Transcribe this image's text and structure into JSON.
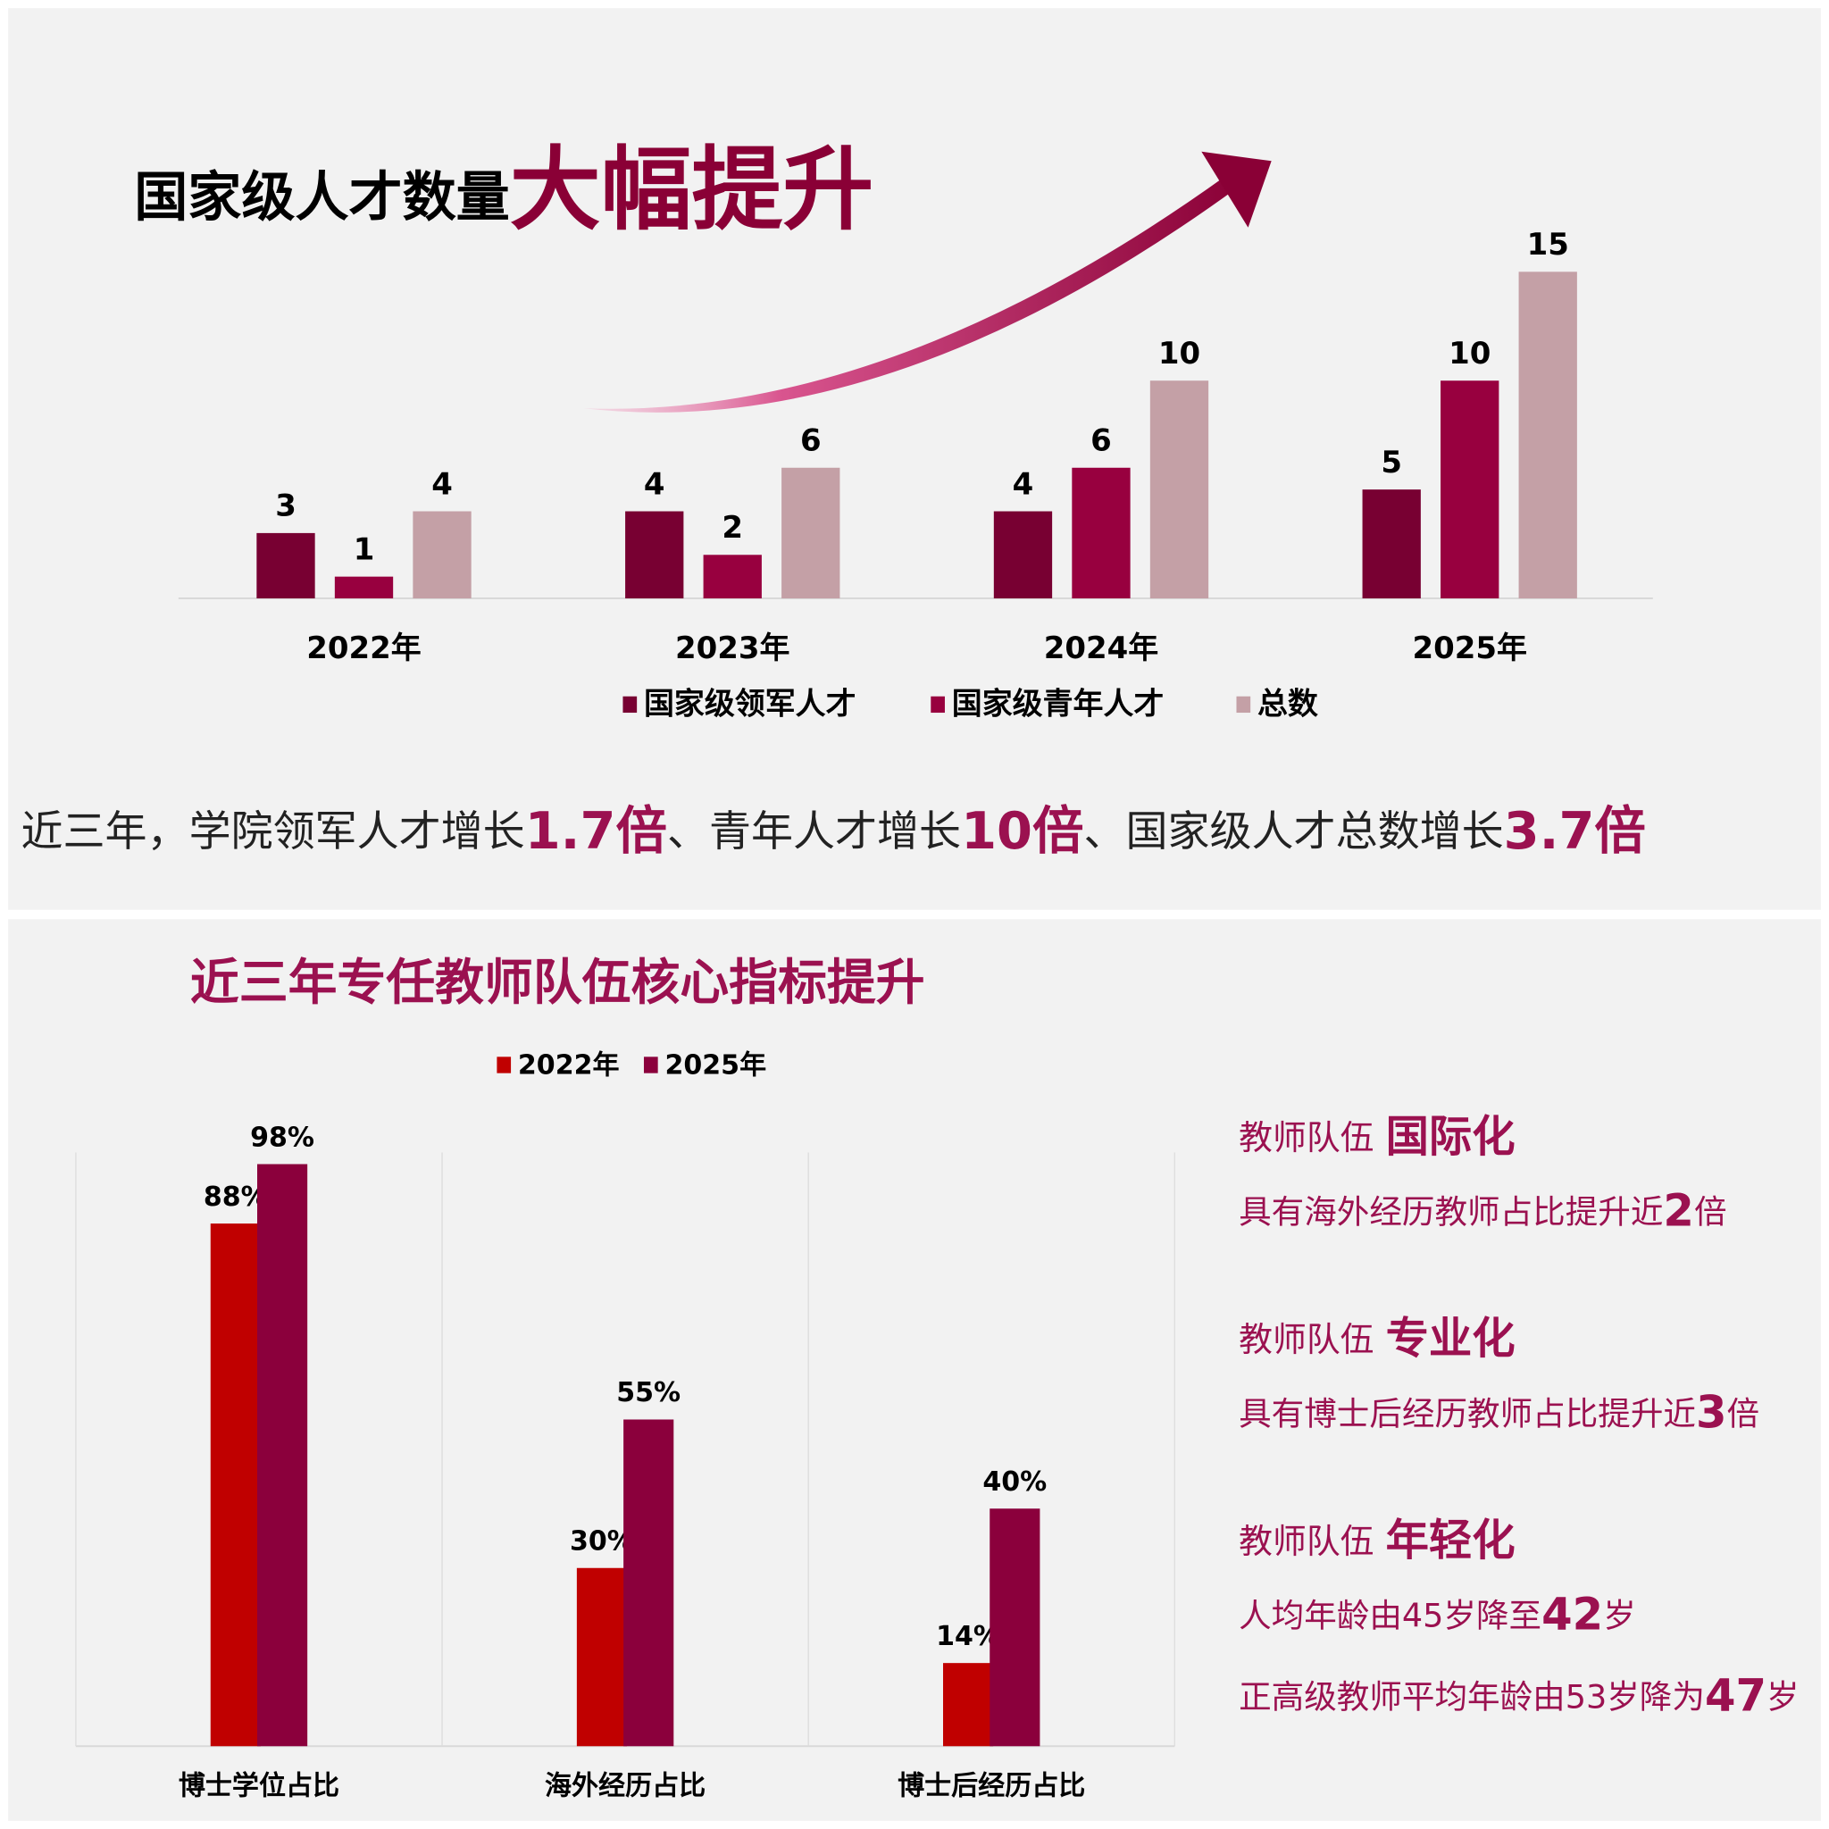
{
  "chart_data": [
    {
      "type": "bar",
      "title": "国家级人才数量",
      "title_emphasis": "大幅提升",
      "categories": [
        "2022年",
        "2023年",
        "2024年",
        "2025年"
      ],
      "series": [
        {
          "name": "国家级领军人才",
          "color": "#780032",
          "values": [
            3,
            4,
            4,
            5
          ]
        },
        {
          "name": "国家级青年人才",
          "color": "#98003f",
          "values": [
            1,
            2,
            6,
            10
          ]
        },
        {
          "name": "总数",
          "color": "#c4a0a6",
          "values": [
            4,
            6,
            10,
            15
          ]
        }
      ]
    },
    {
      "type": "bar",
      "title": "近三年专任教师队伍核心指标提升",
      "categories": [
        "博士学位占比",
        "海外经历占比",
        "博士后经历占比"
      ],
      "series": [
        {
          "name": "2022年",
          "color": "#c00000",
          "values": [
            88,
            30,
            14
          ],
          "value_labels": [
            "88%",
            "30%",
            "14%"
          ]
        },
        {
          "name": "2025年",
          "color": "#8b003c",
          "values": [
            98,
            55,
            40
          ],
          "value_labels": [
            "98%",
            "55%",
            "40%"
          ]
        }
      ]
    }
  ],
  "summary": [
    "近三年，学院领军人才增长",
    "1.7倍",
    "、青年人才增长",
    "10倍",
    "、国家级人才总数增长",
    "3.7倍"
  ],
  "highlights": [
    {
      "label": "教师队伍",
      "emphasis": "国际化",
      "details": [
        [
          "具有海外经历教师占比提升近",
          "2",
          "倍"
        ]
      ]
    },
    {
      "label": "教师队伍",
      "emphasis": "专业化",
      "details": [
        [
          "具有博士后经历教师占比提升近",
          "3",
          "倍"
        ]
      ]
    },
    {
      "label": "教师队伍",
      "emphasis": "年轻化",
      "details": [
        [
          "人均年龄由45岁降至",
          "42",
          "岁"
        ],
        [
          "正高级教师平均年龄由53岁降为",
          "47",
          "岁"
        ]
      ]
    }
  ]
}
